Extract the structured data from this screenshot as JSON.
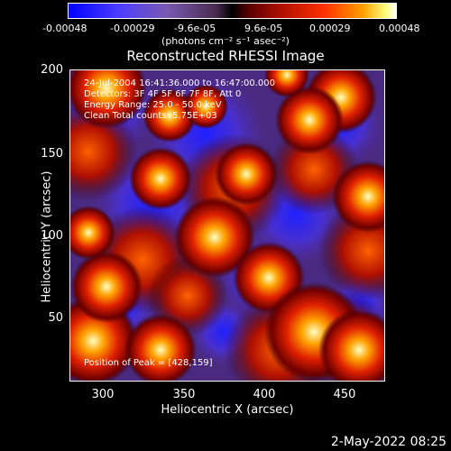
{
  "colorbar": {
    "ticks": [
      "-0.00048",
      "-0.00029",
      "-9.6e-05",
      "9.6e-05",
      "0.00029",
      "0.00048"
    ],
    "units": "(photons cm⁻² s⁻¹ asec⁻²)"
  },
  "title": "Reconstructed RHESSI Image",
  "info": {
    "time_range": "24-Jul-2004 16:41:36.000 to 16:47:00.000",
    "detectors": "Detectors: 3F 4F 5F 6F 7F 8F, Att 0",
    "energy": "Energy Range: 25.0 - 50.0 keV",
    "clean": "Clean    Total counts: 5.75E+03",
    "peak": "Position of Peak = [428,159]"
  },
  "axes": {
    "xlabel": "Heliocentric X (arcsec)",
    "ylabel": "Heliocentric Y (arcsec)",
    "xticks": [
      "300",
      "350",
      "400",
      "450"
    ],
    "yticks": [
      "200",
      "150",
      "100",
      "50"
    ],
    "xlim": [
      278,
      472
    ],
    "ylim": [
      8,
      200
    ]
  },
  "timestamp": "2-May-2022 08:25",
  "colors": {
    "low": "#0000ff",
    "mid_low": "#6a4ac0",
    "zero": "#000000",
    "mid_high": "#ff3000",
    "high": "#ffffff"
  }
}
